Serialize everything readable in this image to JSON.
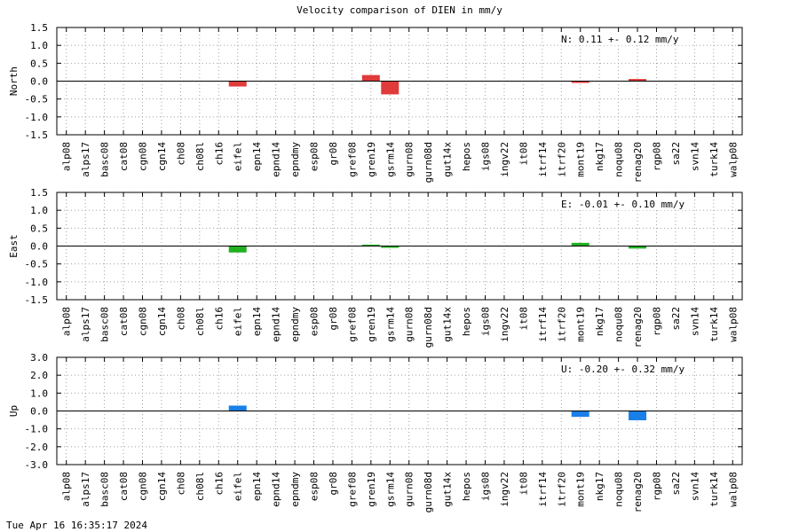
{
  "title": "Velocity comparison of DIEN in mm/y",
  "timestamp": "Tue Apr 16 16:35:17 2024",
  "chart_data": [
    {
      "type": "bar",
      "ylabel": "North",
      "annotation": "N:   0.11 +-  0.12 mm/y",
      "color": "#e03a3a",
      "ylim": [
        -1.5,
        1.5
      ],
      "yticks": [
        "1.5",
        "1.0",
        "0.5",
        "0.0",
        "-0.5",
        "-1.0",
        "-1.5"
      ],
      "grid": true,
      "categories": [
        "alp08",
        "alps17",
        "basc08",
        "cat08",
        "cgn08",
        "cgn14",
        "ch08",
        "ch08l",
        "ch16",
        "eifel",
        "epn14",
        "epnd14",
        "epndmy",
        "esp08",
        "gr08",
        "gref08",
        "gren19",
        "gsrm14",
        "gurn08",
        "gurn08d",
        "gut14x",
        "hepos",
        "igs08",
        "ingv22",
        "it08",
        "itrf14",
        "itrf20",
        "mont19",
        "nkg17",
        "noqu08",
        "renag20",
        "rgp08",
        "sa22",
        "svn14",
        "turk14",
        "walp08"
      ],
      "values": [
        null,
        null,
        null,
        null,
        null,
        null,
        null,
        null,
        null,
        -0.15,
        null,
        null,
        null,
        null,
        null,
        null,
        0.17,
        -0.37,
        null,
        null,
        null,
        null,
        null,
        null,
        null,
        null,
        null,
        -0.04,
        null,
        null,
        0.06,
        null,
        null,
        null,
        null,
        null
      ]
    },
    {
      "type": "bar",
      "ylabel": "East",
      "annotation": "E:  -0.01 +-  0.10 mm/y",
      "color": "#20b020",
      "ylim": [
        -1.5,
        1.5
      ],
      "yticks": [
        "1.5",
        "1.0",
        "0.5",
        "0.0",
        "-0.5",
        "-1.0",
        "-1.5"
      ],
      "grid": true,
      "categories": [
        "alp08",
        "alps17",
        "basc08",
        "cat08",
        "cgn08",
        "cgn14",
        "ch08",
        "ch08l",
        "ch16",
        "eifel",
        "epn14",
        "epnd14",
        "epndmy",
        "esp08",
        "gr08",
        "gref08",
        "gren19",
        "gsrm14",
        "gurn08",
        "gurn08d",
        "gut14x",
        "hepos",
        "igs08",
        "ingv22",
        "it08",
        "itrf14",
        "itrf20",
        "mont19",
        "nkg17",
        "noqu08",
        "renag20",
        "rgp08",
        "sa22",
        "svn14",
        "turk14",
        "walp08"
      ],
      "values": [
        null,
        null,
        null,
        null,
        null,
        null,
        null,
        null,
        null,
        -0.18,
        null,
        null,
        null,
        null,
        null,
        null,
        0.04,
        -0.04,
        null,
        null,
        null,
        null,
        null,
        null,
        null,
        null,
        null,
        0.09,
        null,
        null,
        -0.07,
        null,
        null,
        null,
        null,
        null
      ]
    },
    {
      "type": "bar",
      "ylabel": "Up",
      "annotation": "U:  -0.20 +-  0.32 mm/y",
      "color": "#1a7fe8",
      "ylim": [
        -3.0,
        3.0
      ],
      "yticks": [
        "3.0",
        "2.0",
        "1.0",
        "0.0",
        "-1.0",
        "-2.0",
        "-3.0"
      ],
      "grid": true,
      "categories": [
        "alp08",
        "alps17",
        "basc08",
        "cat08",
        "cgn08",
        "cgn14",
        "ch08",
        "ch08l",
        "ch16",
        "eifel",
        "epn14",
        "epnd14",
        "epndmy",
        "esp08",
        "gr08",
        "gref08",
        "gren19",
        "gsrm14",
        "gurn08",
        "gurn08d",
        "gut14x",
        "hepos",
        "igs08",
        "ingv22",
        "it08",
        "itrf14",
        "itrf20",
        "mont19",
        "nkg17",
        "noqu08",
        "renag20",
        "rgp08",
        "sa22",
        "svn14",
        "turk14",
        "walp08"
      ],
      "values": [
        null,
        null,
        null,
        null,
        null,
        null,
        null,
        null,
        null,
        0.3,
        null,
        null,
        null,
        null,
        null,
        null,
        null,
        null,
        null,
        null,
        null,
        null,
        null,
        null,
        null,
        null,
        null,
        -0.33,
        null,
        null,
        -0.52,
        null,
        null,
        null,
        null,
        null
      ]
    }
  ]
}
